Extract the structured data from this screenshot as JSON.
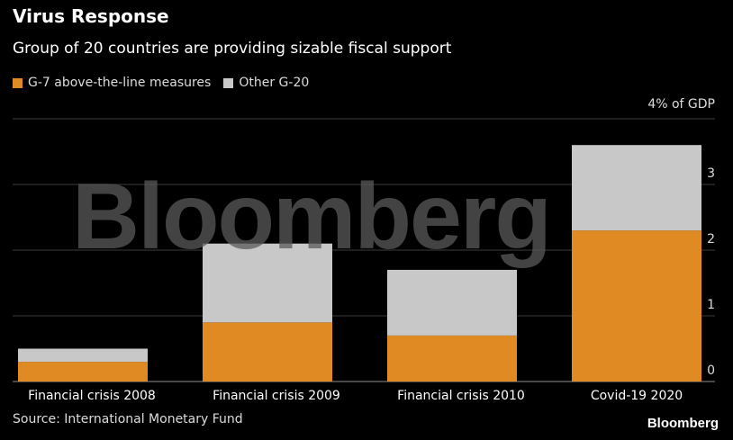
{
  "header": {
    "title": "Virus Response",
    "subtitle": "Group of 20 countries are providing sizable fiscal support"
  },
  "legend": {
    "items": [
      {
        "label": "G-7 above-the-line measures",
        "color": "#e08a24"
      },
      {
        "label": "Other G-20",
        "color": "#c8c8c8"
      }
    ]
  },
  "footer": {
    "source": "Source: International Monetary Fund",
    "brand": "Bloomberg"
  },
  "watermark": "Bloomberg",
  "chart_data": {
    "type": "bar",
    "stacked": true,
    "categories": [
      "Financial crisis 2008",
      "Financial crisis 2009",
      "Financial crisis 2010",
      "Covid-19 2020"
    ],
    "series": [
      {
        "name": "G-7 above-the-line measures",
        "values": [
          0.3,
          0.9,
          0.7,
          2.3
        ],
        "color": "#e08a24"
      },
      {
        "name": "Other G-20",
        "values": [
          0.2,
          1.2,
          1.0,
          1.3
        ],
        "color": "#c8c8c8"
      }
    ],
    "unit_label": "4% of GDP",
    "yticks": [
      0,
      1,
      2,
      3
    ],
    "ylim": [
      0,
      4
    ],
    "ylabel": "",
    "xlabel": "",
    "grid": true,
    "legend_position": "top-left",
    "yaxis_side": "right"
  }
}
